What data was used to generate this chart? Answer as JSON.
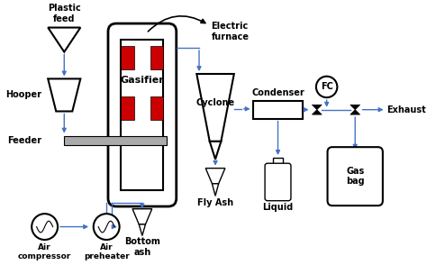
{
  "bg_color": "#ffffff",
  "line_color": "#4472c4",
  "black": "#000000",
  "red": "#cc0000",
  "gray": "#aaaaaa",
  "labels": {
    "plastic_feed": "Plastic\nfeed",
    "hooper": "Hooper",
    "feeder": "Feeder",
    "gasifier": "Gasifier",
    "electric_furnace": "Electric\nfurnace",
    "cyclone": "Cyclone",
    "condenser": "Condenser",
    "fc": "FC",
    "exhaust": "Exhaust",
    "fly_ash": "Fly Ash",
    "bottom_ash": "Bottom\nash",
    "liquid": "Liquid",
    "gas_bag": "Gas\nbag",
    "air_compressor": "Air\ncompressor",
    "air_preheater": "Air\npreheater"
  }
}
